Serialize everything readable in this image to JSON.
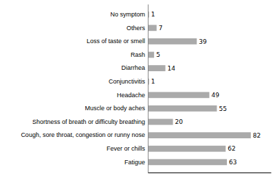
{
  "chart_data": {
    "type": "bar",
    "orientation": "horizontal",
    "categories": [
      "Fatigue",
      "Fever or chills",
      "Cough, sore throat, congestion or runny nose",
      "Shortness of breath or difficulty breathing",
      "Muscle or body aches",
      "Headache",
      "Conjunctivitis",
      "Diarrhea",
      "Rash",
      "Loss of taste or smell",
      "Others",
      "No symptom"
    ],
    "values": [
      63,
      62,
      82,
      20,
      55,
      49,
      1,
      14,
      5,
      39,
      7,
      1
    ],
    "color": "#aaaaaa",
    "xlim": [
      0,
      98
    ],
    "data_labels": true,
    "tick_labels": "y",
    "grid": false
  }
}
